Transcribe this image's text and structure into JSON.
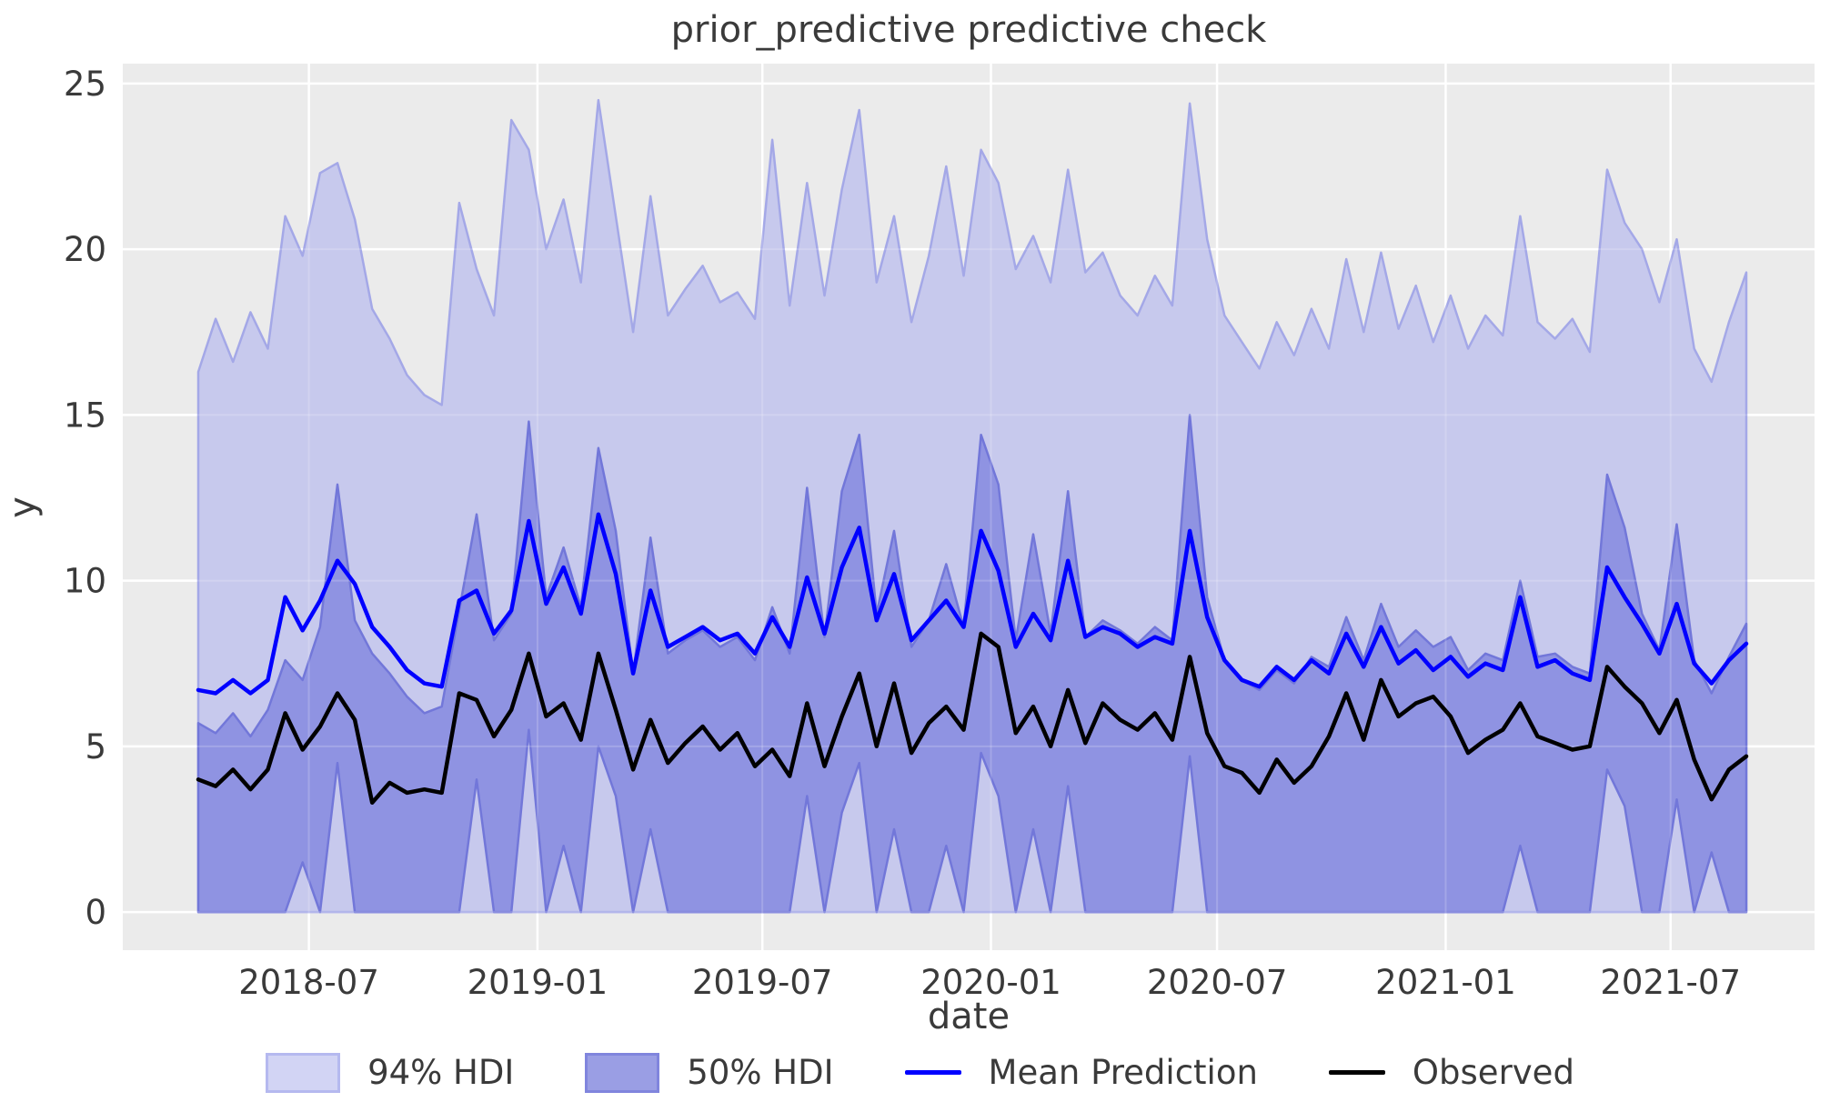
{
  "title": "prior_predictive predictive check",
  "axes": {
    "xlabel": "date",
    "ylabel": "y",
    "x_tick_labels": [
      "2018-07",
      "2019-01",
      "2019-07",
      "2020-01",
      "2020-07",
      "2021-01",
      "2021-07"
    ],
    "y_tick_labels": [
      "0",
      "5",
      "10",
      "15",
      "20",
      "25"
    ]
  },
  "colors": {
    "figure_background": "#ffffff",
    "axes_background": "#ebebeb",
    "gridline": "#ffffff",
    "text": "#3a3a3a",
    "hdi94_fill": "#c7c9ed",
    "hdi94_edge": "#a4a8e7",
    "hdi50_fill": "#8f93e2",
    "hdi50_edge": "#7277d9",
    "hdi94_legend_fill": "#d2d4f4",
    "hdi94_legend_edge": "#b5b9ef",
    "hdi50_legend_fill": "#9a9ee4",
    "hdi50_legend_edge": "#8085dd",
    "mean_line": "#0000ff",
    "observed_line": "#000000"
  },
  "legend": {
    "items": [
      {
        "label": "94% HDI",
        "type": "patch",
        "fill": "#d2d4f4",
        "edge": "#b5b9ef"
      },
      {
        "label": "50% HDI",
        "type": "patch",
        "fill": "#9a9ee4",
        "edge": "#8085dd"
      },
      {
        "label": "Mean Prediction",
        "type": "line",
        "color": "#0000ff"
      },
      {
        "label": "Observed",
        "type": "line",
        "color": "#000000"
      }
    ]
  },
  "chart_data": {
    "type": "line",
    "title": "prior_predictive predictive check",
    "xlabel": "date",
    "ylabel": "y",
    "grid": true,
    "legend_position": "bottom",
    "ylim": [
      -1.15,
      25.6
    ],
    "y_ticks": [
      0,
      5,
      10,
      15,
      20,
      25
    ],
    "x_start_date": "2018-04-03",
    "x_step_days": 14,
    "n_points": 90,
    "x_ticks": [
      {
        "label": "2018-07",
        "day": 89
      },
      {
        "label": "2019-01",
        "day": 273
      },
      {
        "label": "2019-07",
        "day": 454
      },
      {
        "label": "2020-01",
        "day": 638
      },
      {
        "label": "2020-07",
        "day": 820
      },
      {
        "label": "2021-01",
        "day": 1004
      },
      {
        "label": "2021-07",
        "day": 1185
      }
    ],
    "hdi94_lower_constant": 0,
    "series": [
      {
        "name": "94% HDI upper",
        "values": [
          16.3,
          17.9,
          16.6,
          18.1,
          17.0,
          21.0,
          19.8,
          22.3,
          22.6,
          20.9,
          18.2,
          17.3,
          16.2,
          15.6,
          15.3,
          21.4,
          19.4,
          18.0,
          23.9,
          23.0,
          20.0,
          21.5,
          19.0,
          24.5,
          21.0,
          17.5,
          21.6,
          18.0,
          18.8,
          19.5,
          18.4,
          18.7,
          17.9,
          23.3,
          18.3,
          22.0,
          18.6,
          21.8,
          24.2,
          19.0,
          21.0,
          17.8,
          19.8,
          22.5,
          19.2,
          23.0,
          22.0,
          19.4,
          20.4,
          19.0,
          22.4,
          19.3,
          19.9,
          18.6,
          18.0,
          19.2,
          18.3,
          24.4,
          20.3,
          18.0,
          17.2,
          16.4,
          17.8,
          16.8,
          18.2,
          17.0,
          19.7,
          17.5,
          19.9,
          17.6,
          18.9,
          17.2,
          18.6,
          17.0,
          18.0,
          17.4,
          21.0,
          17.8,
          17.3,
          17.9,
          16.9,
          22.4,
          20.8,
          20.0,
          18.4,
          20.3,
          17.0,
          16.0,
          17.8,
          19.3
        ]
      },
      {
        "name": "50% HDI upper",
        "values": [
          5.7,
          5.4,
          6.0,
          5.3,
          6.1,
          7.6,
          7.0,
          8.6,
          12.9,
          8.8,
          7.8,
          7.2,
          6.5,
          6.0,
          6.2,
          9.1,
          12.0,
          8.2,
          9.0,
          14.8,
          9.5,
          11.0,
          9.2,
          14.0,
          11.5,
          7.2,
          11.3,
          7.8,
          8.2,
          8.5,
          8.0,
          8.3,
          7.6,
          9.2,
          7.8,
          12.8,
          8.3,
          12.7,
          14.4,
          9.0,
          11.5,
          8.0,
          8.8,
          10.5,
          8.6,
          14.4,
          12.9,
          8.2,
          11.4,
          8.4,
          12.7,
          8.3,
          8.8,
          8.5,
          8.1,
          8.6,
          8.2,
          15.0,
          9.5,
          7.6,
          7.0,
          6.7,
          7.3,
          6.9,
          7.7,
          7.4,
          8.9,
          7.6,
          9.3,
          8.0,
          8.5,
          8.0,
          8.3,
          7.3,
          7.8,
          7.6,
          10.0,
          7.7,
          7.8,
          7.4,
          7.2,
          13.2,
          11.6,
          9.0,
          7.9,
          11.7,
          7.6,
          6.6,
          7.7,
          8.7
        ]
      },
      {
        "name": "50% HDI lower",
        "values": [
          0,
          0,
          0,
          0,
          0,
          0,
          1.5,
          0,
          4.5,
          0,
          0,
          0,
          0,
          0,
          0,
          0,
          4.0,
          0,
          0,
          5.5,
          0,
          2.0,
          0,
          5.0,
          3.5,
          0,
          2.5,
          0,
          0,
          0,
          0,
          0,
          0,
          0,
          0,
          3.5,
          0,
          3.0,
          4.5,
          0,
          2.5,
          0,
          0,
          2.0,
          0,
          4.8,
          3.5,
          0,
          2.5,
          0,
          3.8,
          0,
          0,
          0,
          0,
          0,
          0,
          4.7,
          0,
          0,
          0,
          0,
          0,
          0,
          0,
          0,
          0,
          0,
          0,
          0,
          0,
          0,
          0,
          0,
          0,
          0,
          2.0,
          0,
          0,
          0,
          0,
          4.3,
          3.2,
          0,
          0,
          3.4,
          0,
          1.8,
          0,
          0
        ]
      },
      {
        "name": "Mean Prediction",
        "values": [
          6.7,
          6.6,
          7.0,
          6.6,
          7.0,
          9.5,
          8.5,
          9.4,
          10.6,
          9.9,
          8.6,
          8.0,
          7.3,
          6.9,
          6.8,
          9.4,
          9.7,
          8.4,
          9.1,
          11.8,
          9.3,
          10.4,
          9.0,
          12.0,
          10.2,
          7.2,
          9.7,
          8.0,
          8.3,
          8.6,
          8.2,
          8.4,
          7.8,
          8.9,
          8.0,
          10.1,
          8.4,
          10.4,
          11.6,
          8.8,
          10.2,
          8.2,
          8.8,
          9.4,
          8.6,
          11.5,
          10.3,
          8.0,
          9.0,
          8.2,
          10.6,
          8.3,
          8.6,
          8.4,
          8.0,
          8.3,
          8.1,
          11.5,
          8.9,
          7.6,
          7.0,
          6.8,
          7.4,
          7.0,
          7.6,
          7.2,
          8.4,
          7.4,
          8.6,
          7.5,
          7.9,
          7.3,
          7.7,
          7.1,
          7.5,
          7.3,
          9.5,
          7.4,
          7.6,
          7.2,
          7.0,
          10.4,
          9.5,
          8.7,
          7.8,
          9.3,
          7.5,
          6.9,
          7.6,
          8.1
        ]
      },
      {
        "name": "Observed",
        "values": [
          4.0,
          3.8,
          4.3,
          3.7,
          4.3,
          6.0,
          4.9,
          5.6,
          6.6,
          5.8,
          3.3,
          3.9,
          3.6,
          3.7,
          3.6,
          6.6,
          6.4,
          5.3,
          6.1,
          7.8,
          5.9,
          6.3,
          5.2,
          7.8,
          6.1,
          4.3,
          5.8,
          4.5,
          5.1,
          5.6,
          4.9,
          5.4,
          4.4,
          4.9,
          4.1,
          6.3,
          4.4,
          5.9,
          7.2,
          5.0,
          6.9,
          4.8,
          5.7,
          6.2,
          5.5,
          8.4,
          8.0,
          5.4,
          6.2,
          5.0,
          6.7,
          5.1,
          6.3,
          5.8,
          5.5,
          6.0,
          5.2,
          7.7,
          5.4,
          4.4,
          4.2,
          3.6,
          4.6,
          3.9,
          4.4,
          5.3,
          6.6,
          5.2,
          7.0,
          5.9,
          6.3,
          6.5,
          5.9,
          4.8,
          5.2,
          5.5,
          6.3,
          5.3,
          5.1,
          4.9,
          5.0,
          7.4,
          6.8,
          6.3,
          5.4,
          6.4,
          4.6,
          3.4,
          4.3,
          4.7
        ]
      }
    ]
  }
}
